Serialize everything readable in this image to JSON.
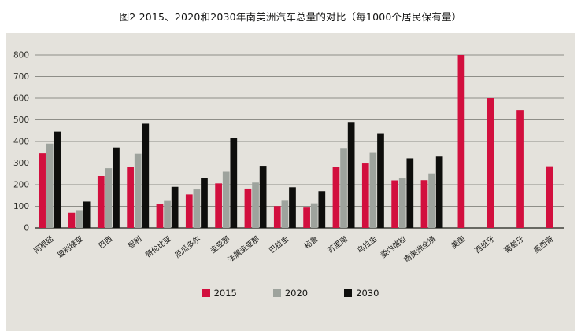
{
  "title": "图2 2015、2020和2030年南美洲汽车总量的对比（每1000个居民保有量）",
  "colors": {
    "page_bg": "#ffffff",
    "panel_bg": "#e4e2dc",
    "grid": "#8e8e88",
    "axis": "#3f3f3a",
    "tick_text": "#2f2f2a",
    "label_text": "#161614",
    "red": "#d20f3e",
    "gray": "#9ea39d",
    "black": "#0e0e0c"
  },
  "chart_data": {
    "type": "bar",
    "title": "图2 2015、2020和2030年南美洲汽车总量的对比（每1000个居民保有量）",
    "xlabel": "",
    "ylabel": "",
    "ylim": [
      0,
      800
    ],
    "ytick_step": 100,
    "grid": "horizontal",
    "legend_position": "bottom-center",
    "categories": [
      "阿根廷",
      "玻利维亚",
      "巴西",
      "智利",
      "哥伦比亚",
      "厄瓜多尔",
      "圭亚那",
      "法属圭亚那",
      "巴拉圭",
      "秘鲁",
      "苏里南",
      "乌拉圭",
      "委内瑞拉",
      "南美洲全境",
      "美国",
      "西班牙",
      "葡萄牙",
      "墨西哥"
    ],
    "series": [
      {
        "name": "2015",
        "color_key": "red",
        "values": [
          345,
          70,
          240,
          283,
          110,
          155,
          206,
          182,
          101,
          94,
          280,
          298,
          220,
          221,
          800,
          600,
          545,
          285
        ]
      },
      {
        "name": "2020",
        "color_key": "gray",
        "values": [
          390,
          82,
          276,
          343,
          125,
          178,
          260,
          210,
          126,
          114,
          370,
          347,
          229,
          252,
          null,
          null,
          null,
          null
        ]
      },
      {
        "name": "2030",
        "color_key": "black",
        "values": [
          445,
          122,
          372,
          482,
          190,
          232,
          416,
          287,
          188,
          170,
          490,
          438,
          322,
          330,
          null,
          null,
          null,
          null
        ]
      }
    ]
  }
}
